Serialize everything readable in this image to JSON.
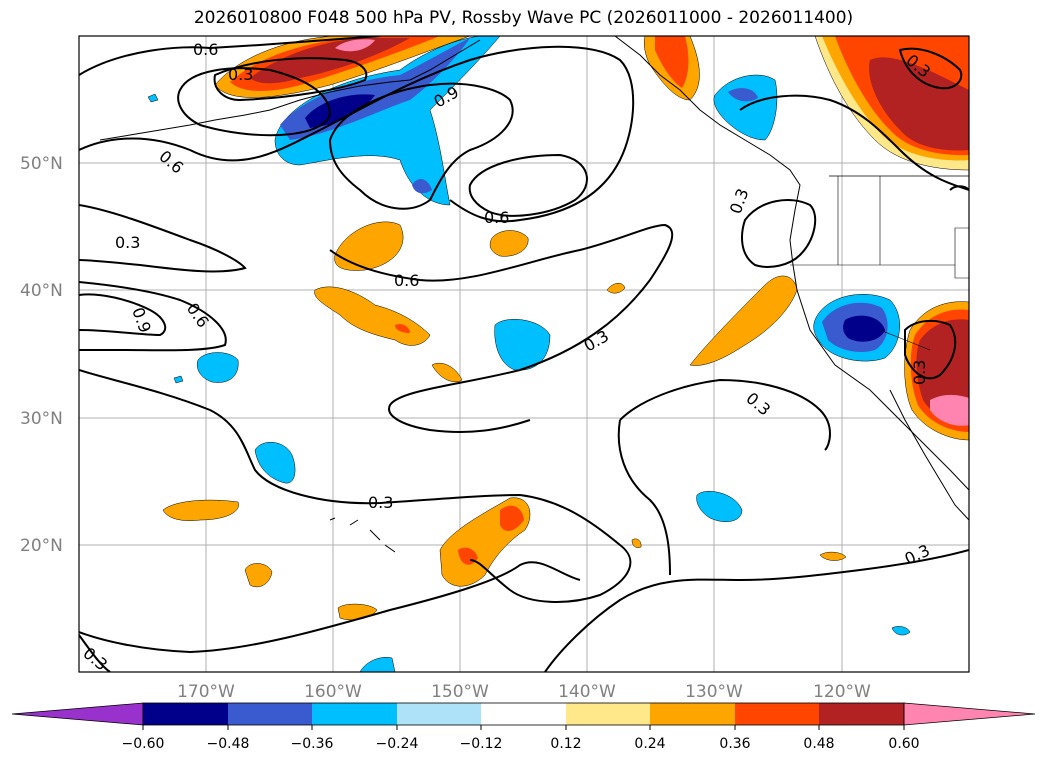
{
  "title": "2026010800 F048 500 hPa PV, Rossby Wave PC (2026011000 - 2026011400)",
  "map": {
    "lon_range": [
      -180,
      -110
    ],
    "lat_range": [
      10,
      60
    ],
    "lon_ticks": [
      "170°W",
      "160°W",
      "150°W",
      "140°W",
      "130°W",
      "120°W"
    ],
    "lat_ticks": [
      "50°N",
      "40°N",
      "30°N",
      "20°N"
    ]
  },
  "colorbar": {
    "levels": [
      "−0.60",
      "−0.48",
      "−0.36",
      "−0.24",
      "−0.12",
      "0.12",
      "0.24",
      "0.36",
      "0.48",
      "0.60"
    ],
    "colors": [
      "#9932CC",
      "#00008B",
      "#3A5BD0",
      "#00BFFF",
      "#ADE2F8",
      "#FFFFFF",
      "#FFE88A",
      "#FFA500",
      "#FF4500",
      "#B22222",
      "#FF85B0"
    ]
  },
  "contour_labels": [
    "0.6",
    "0.3",
    "0.6",
    "0.9",
    "0.3",
    "0.6",
    "0.9",
    "0.6",
    "0.6",
    "0.3",
    "0.3",
    "0.3",
    "0.3",
    "0.3",
    "0.3",
    "0.3",
    "0.3"
  ]
}
